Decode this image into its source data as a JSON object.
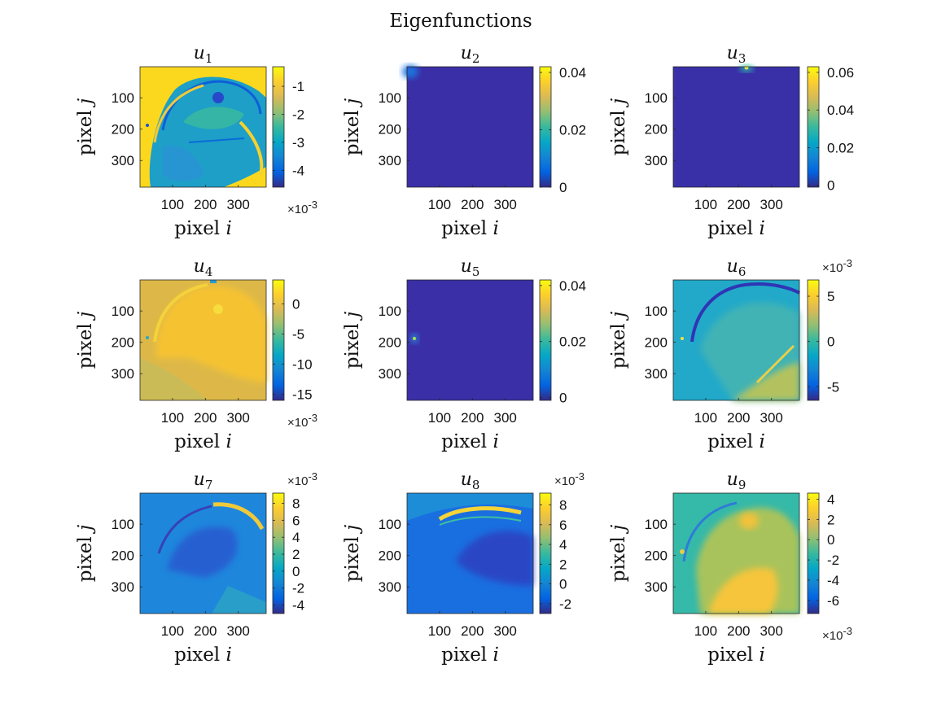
{
  "figure": {
    "title": "Eigenfunctions"
  },
  "colors": {
    "parula": [
      "#352a87",
      "#0363e1",
      "#1485d4",
      "#06a7c6",
      "#38b99e",
      "#92bf73",
      "#d9ba56",
      "#fcce2e",
      "#f9fb0e"
    ]
  },
  "chart_data": [
    {
      "type": "heatmap",
      "title_base": "u",
      "title_sub": "1",
      "xlabel_text": "pixel ",
      "xlabel_var": "i",
      "ylabel_text": "pixel ",
      "ylabel_var": "j",
      "xticks": [
        "100",
        "200",
        "300"
      ],
      "yticks": [
        "100",
        "200",
        "300"
      ],
      "xlim": [
        1,
        385
      ],
      "ylim": [
        1,
        385
      ],
      "colorbar": {
        "ticks": [
          "-1",
          "-2",
          "-3",
          "-4"
        ],
        "tick_values": [
          -1,
          -2,
          -3,
          -4
        ],
        "range": [
          -4.6,
          -0.3
        ],
        "exponent_base": "×10",
        "exponent_power": "-3",
        "exponent_position": "bottom"
      },
      "description": "head MRI pattern, dominant yellow background"
    },
    {
      "type": "heatmap",
      "title_base": "u",
      "title_sub": "2",
      "xlabel_text": "pixel ",
      "xlabel_var": "i",
      "ylabel_text": "pixel ",
      "ylabel_var": "j",
      "xticks": [
        "100",
        "200",
        "300"
      ],
      "yticks": [
        "100",
        "200",
        "300"
      ],
      "xlim": [
        1,
        385
      ],
      "ylim": [
        1,
        385
      ],
      "colorbar": {
        "ticks": [
          "0.04",
          "0.02",
          "0"
        ],
        "tick_values": [
          0.04,
          0.02,
          0
        ],
        "range": [
          0,
          0.042
        ],
        "exponent_base": "",
        "exponent_power": "",
        "exponent_position": "none"
      }
    },
    {
      "type": "heatmap",
      "title_base": "u",
      "title_sub": "3",
      "xlabel_text": "pixel ",
      "xlabel_var": "i",
      "ylabel_text": "pixel ",
      "ylabel_var": "j",
      "xticks": [
        "100",
        "200",
        "300"
      ],
      "yticks": [
        "100",
        "200",
        "300"
      ],
      "xlim": [
        1,
        385
      ],
      "ylim": [
        1,
        385
      ],
      "colorbar": {
        "ticks": [
          "0.06",
          "0.04",
          "0.02",
          "0"
        ],
        "tick_values": [
          0.06,
          0.04,
          0.02,
          0
        ],
        "range": [
          -0.001,
          0.063
        ],
        "exponent_base": "",
        "exponent_power": "",
        "exponent_position": "none"
      }
    },
    {
      "type": "heatmap",
      "title_base": "u",
      "title_sub": "4",
      "xlabel_text": "pixel ",
      "xlabel_var": "i",
      "ylabel_text": "pixel ",
      "ylabel_var": "j",
      "xticks": [
        "100",
        "200",
        "300"
      ],
      "yticks": [
        "100",
        "200",
        "300"
      ],
      "xlim": [
        1,
        385
      ],
      "ylim": [
        1,
        385
      ],
      "colorbar": {
        "ticks": [
          "0",
          "-5",
          "-10",
          "-15"
        ],
        "tick_values": [
          0,
          -5,
          -10,
          -15
        ],
        "range": [
          -16,
          4
        ],
        "exponent_base": "×10",
        "exponent_power": "-3",
        "exponent_position": "bottom"
      }
    },
    {
      "type": "heatmap",
      "title_base": "u",
      "title_sub": "5",
      "xlabel_text": "pixel ",
      "xlabel_var": "i",
      "ylabel_text": "pixel ",
      "ylabel_var": "j",
      "xticks": [
        "100",
        "200",
        "300"
      ],
      "yticks": [
        "100",
        "200",
        "300"
      ],
      "xlim": [
        1,
        385
      ],
      "ylim": [
        1,
        385
      ],
      "colorbar": {
        "ticks": [
          "0.04",
          "0.02",
          "0"
        ],
        "tick_values": [
          0.04,
          0.02,
          0
        ],
        "range": [
          -0.001,
          0.042
        ],
        "exponent_base": "",
        "exponent_power": "",
        "exponent_position": "none"
      }
    },
    {
      "type": "heatmap",
      "title_base": "u",
      "title_sub": "6",
      "xlabel_text": "pixel ",
      "xlabel_var": "i",
      "ylabel_text": "pixel ",
      "ylabel_var": "j",
      "xticks": [
        "100",
        "200",
        "300"
      ],
      "yticks": [
        "100",
        "200",
        "300"
      ],
      "xlim": [
        1,
        385
      ],
      "ylim": [
        1,
        385
      ],
      "colorbar": {
        "ticks": [
          "5",
          "0",
          "-5"
        ],
        "tick_values": [
          5,
          0,
          -5
        ],
        "range": [
          -6.5,
          6.8
        ],
        "exponent_base": "×10",
        "exponent_power": "-3",
        "exponent_position": "top"
      }
    },
    {
      "type": "heatmap",
      "title_base": "u",
      "title_sub": "7",
      "xlabel_text": "pixel ",
      "xlabel_var": "i",
      "ylabel_text": "pixel ",
      "ylabel_var": "j",
      "xticks": [
        "100",
        "200",
        "300"
      ],
      "yticks": [
        "100",
        "200",
        "300"
      ],
      "xlim": [
        1,
        385
      ],
      "ylim": [
        1,
        385
      ],
      "colorbar": {
        "ticks": [
          "8",
          "6",
          "4",
          "2",
          "0",
          "-2",
          "-4"
        ],
        "tick_values": [
          8,
          6,
          4,
          2,
          0,
          -2,
          -4
        ],
        "range": [
          -5,
          9.2
        ],
        "exponent_base": "×10",
        "exponent_power": "-3",
        "exponent_position": "top"
      }
    },
    {
      "type": "heatmap",
      "title_base": "u",
      "title_sub": "8",
      "xlabel_text": "pixel ",
      "xlabel_var": "i",
      "ylabel_text": "pixel ",
      "ylabel_var": "j",
      "xticks": [
        "100",
        "200",
        "300"
      ],
      "yticks": [
        "100",
        "200",
        "300"
      ],
      "xlim": [
        1,
        385
      ],
      "ylim": [
        1,
        385
      ],
      "colorbar": {
        "ticks": [
          "8",
          "6",
          "4",
          "2",
          "0",
          "-2"
        ],
        "tick_values": [
          8,
          6,
          4,
          2,
          0,
          -2
        ],
        "range": [
          -3,
          9.2
        ],
        "exponent_base": "×10",
        "exponent_power": "-3",
        "exponent_position": "top"
      }
    },
    {
      "type": "heatmap",
      "title_base": "u",
      "title_sub": "9",
      "xlabel_text": "pixel ",
      "xlabel_var": "i",
      "ylabel_text": "pixel ",
      "ylabel_var": "j",
      "xticks": [
        "100",
        "200",
        "300"
      ],
      "yticks": [
        "100",
        "200",
        "300"
      ],
      "xlim": [
        1,
        385
      ],
      "ylim": [
        1,
        385
      ],
      "colorbar": {
        "ticks": [
          "4",
          "2",
          "0",
          "-2",
          "-4",
          "-6"
        ],
        "tick_values": [
          4,
          2,
          0,
          -2,
          -4,
          -6
        ],
        "range": [
          -7.3,
          4.6
        ],
        "exponent_base": "×10",
        "exponent_power": "-3",
        "exponent_position": "bottom"
      }
    }
  ]
}
